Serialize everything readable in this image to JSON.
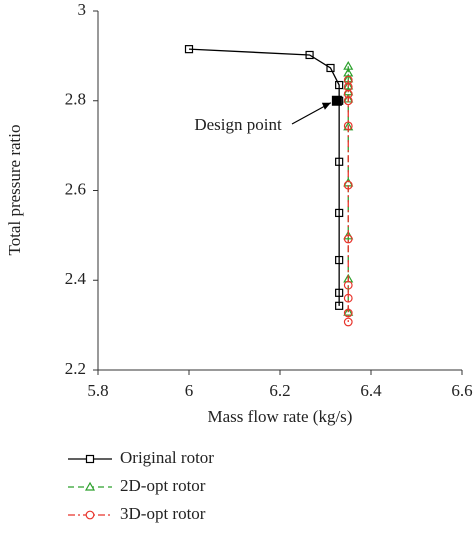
{
  "chart_data": {
    "type": "line",
    "x_label": "Mass flow rate (kg/s)",
    "y_label": "Total pressure ratio",
    "xlim": [
      5.8,
      6.6
    ],
    "xticks": [
      5.8,
      6,
      6.2,
      6.4,
      6.6
    ],
    "ylim": [
      2.2,
      3
    ],
    "yticks": [
      2.2,
      2.4,
      2.6,
      2.8,
      3
    ],
    "legend": "bottom",
    "series": [
      {
        "name": "Original rotor",
        "color": "#000000",
        "marker": "square",
        "dash": "solid",
        "x": [
          6.0,
          6.265,
          6.311,
          6.33,
          6.33,
          6.33,
          6.33,
          6.33,
          6.33,
          6.33
        ],
        "values": [
          2.915,
          2.902,
          2.873,
          2.835,
          2.8,
          2.664,
          2.55,
          2.445,
          2.372,
          2.343
        ]
      },
      {
        "name": "2D-opt rotor",
        "color": "#2ca02c",
        "marker": "triangle",
        "dash": "dashed",
        "x": [
          6.35,
          6.35,
          6.35,
          6.35,
          6.35,
          6.35,
          6.35,
          6.35,
          6.35,
          6.35,
          6.35
        ],
        "values": [
          2.877,
          2.862,
          2.849,
          2.833,
          2.82,
          2.804,
          2.742,
          2.617,
          2.499,
          2.403,
          2.329
        ]
      },
      {
        "name": "3D-opt rotor",
        "color": "#e8342c",
        "marker": "circle",
        "dash": "dashdot",
        "x": [
          6.35,
          6.35,
          6.35,
          6.35,
          6.35,
          6.35,
          6.35,
          6.35,
          6.35,
          6.35,
          6.35
        ],
        "values": [
          2.846,
          2.831,
          2.815,
          2.8,
          2.744,
          2.612,
          2.492,
          2.389,
          2.36,
          2.327,
          2.307
        ]
      }
    ],
    "annotations": [
      {
        "text": "Design point",
        "x": 6.325,
        "y": 2.8
      }
    ]
  }
}
